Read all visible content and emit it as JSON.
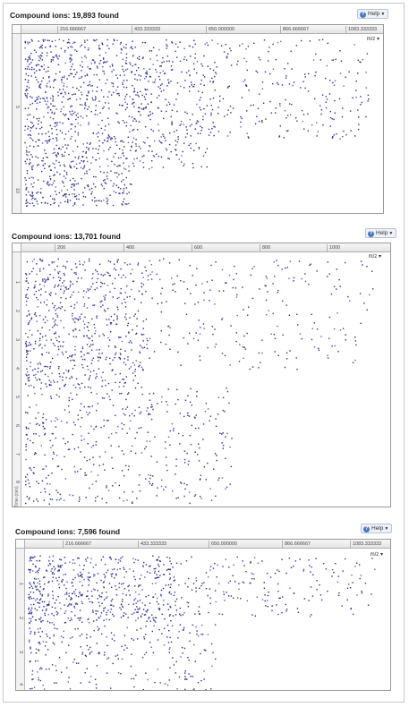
{
  "panels": [
    {
      "title": "Compound ions: 19,893 found",
      "help_label": "Help",
      "x_ticks": [
        "216.666667",
        "433.333333",
        "650.000000",
        "866.666667",
        "1083.333333"
      ],
      "x_label": "m/z",
      "y_ticks": [
        "5",
        "10"
      ],
      "y_title": ""
    },
    {
      "title": "Compound ions: 13,701 found",
      "help_label": "Help",
      "x_ticks": [
        "200",
        "400",
        "600",
        "800",
        "1000"
      ],
      "x_label": "m/z",
      "y_ticks": [
        "1",
        "2",
        "3",
        "4",
        "5",
        "6",
        "7",
        "8"
      ],
      "y_title": "Time (min)"
    },
    {
      "title": "Compound ions: 7,596 found",
      "help_label": "Help",
      "x_ticks": [
        "216.666667",
        "433.333333",
        "650.000000",
        "866.666667",
        "1083.333333"
      ],
      "x_label": "m/z",
      "y_ticks": [
        "1",
        "2",
        "3",
        "4"
      ],
      "y_title": ""
    }
  ],
  "colors": {
    "points": "#2b2f8c",
    "points_light": "#5a5fb8"
  },
  "chart_data": [
    {
      "type": "scatter",
      "title": "Compound ions: 19,893 found",
      "xlabel": "m/z",
      "ylabel": "",
      "x_ticks": [
        216.666667,
        433.333333,
        650.0,
        866.666667,
        1083.333333
      ],
      "y_ticks": [
        5,
        10
      ],
      "xlim": [
        50,
        1300
      ],
      "ylim": [
        0,
        12
      ],
      "y_inverted": true,
      "point_count": 19893,
      "density_regions": [
        {
          "x": [
            60,
            430
          ],
          "y": [
            0.3,
            11.5
          ],
          "weight": 0.62
        },
        {
          "x": [
            430,
            700
          ],
          "y": [
            0.3,
            9.0
          ],
          "weight": 0.22
        },
        {
          "x": [
            700,
            1250
          ],
          "y": [
            0.3,
            7.0
          ],
          "weight": 0.16
        }
      ]
    },
    {
      "type": "scatter",
      "title": "Compound ions: 13,701 found",
      "xlabel": "m/z",
      "ylabel": "Time (min)",
      "x_ticks": [
        200,
        400,
        600,
        800,
        1000
      ],
      "y_ticks": [
        1,
        2,
        3,
        4,
        5,
        6,
        7,
        8
      ],
      "xlim": [
        100,
        1150
      ],
      "ylim": [
        0,
        8.7
      ],
      "y_inverted": true,
      "point_count": 13701,
      "density_regions": [
        {
          "x": [
            110,
            450
          ],
          "y": [
            0.2,
            4.6
          ],
          "weight": 0.48
        },
        {
          "x": [
            110,
            700
          ],
          "y": [
            4.6,
            8.6
          ],
          "weight": 0.34
        },
        {
          "x": [
            450,
            1100
          ],
          "y": [
            0.2,
            4.0
          ],
          "weight": 0.18
        }
      ]
    },
    {
      "type": "scatter",
      "title": "Compound ions: 7,596 found",
      "xlabel": "m/z",
      "ylabel": "",
      "x_ticks": [
        216.666667,
        433.333333,
        650.0,
        866.666667,
        1083.333333
      ],
      "y_ticks": [
        1,
        2,
        3,
        4
      ],
      "xlim": [
        50,
        1300
      ],
      "ylim": [
        0,
        4.2
      ],
      "y_inverted": true,
      "point_count": 7596,
      "density_regions": [
        {
          "x": [
            60,
            550
          ],
          "y": [
            0.2,
            2.2
          ],
          "weight": 0.55
        },
        {
          "x": [
            60,
            700
          ],
          "y": [
            2.2,
            4.2
          ],
          "weight": 0.25
        },
        {
          "x": [
            550,
            1250
          ],
          "y": [
            0.2,
            2.0
          ],
          "weight": 0.2
        }
      ]
    }
  ]
}
